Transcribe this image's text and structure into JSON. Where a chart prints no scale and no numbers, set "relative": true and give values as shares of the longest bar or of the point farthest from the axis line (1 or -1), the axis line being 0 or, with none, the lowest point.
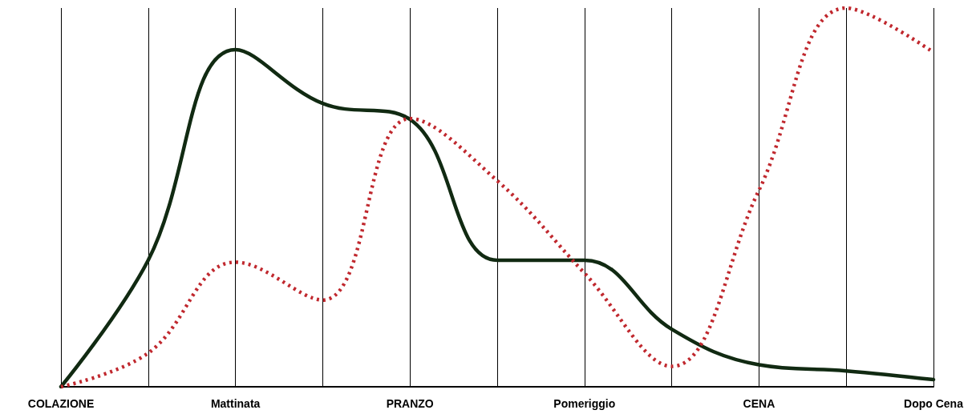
{
  "chart_data": {
    "type": "line",
    "relative": true,
    "grid": "x",
    "marker": "none",
    "categories": [
      "COLAZIONE",
      null,
      "Mattinata",
      null,
      "PRANZO",
      null,
      "Pomeriggio",
      null,
      "CENA",
      null,
      "Dopo Cena"
    ],
    "series": [
      {
        "color": "#112a12",
        "line_style": "solid",
        "values": [
          0,
          0.334,
          0.89,
          0.748,
          0.706,
          0.334,
          0.334,
          0.152,
          0.058,
          0.042,
          0.019
        ]
      },
      {
        "color": "#c0282e",
        "line_style": "dotted",
        "values": [
          0,
          0.089,
          0.329,
          0.229,
          0.708,
          0.544,
          0.3,
          0.054,
          0.519,
          1,
          0.883
        ]
      }
    ]
  }
}
